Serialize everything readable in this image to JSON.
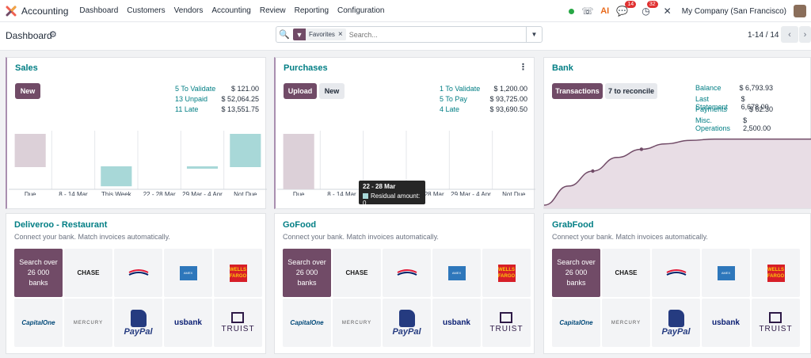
{
  "navbar": {
    "app_title": "Accounting",
    "menu": [
      "Dashboard",
      "Customers",
      "Vendors",
      "Accounting",
      "Review",
      "Reporting",
      "Configuration"
    ],
    "messages_badge": "14",
    "activity_badge": "32",
    "company": "My Company (San Francisco)"
  },
  "control": {
    "title": "Dashboard",
    "facet": "Favorites",
    "search_placeholder": "Search...",
    "pager": "1-14 / 14"
  },
  "sales": {
    "title": "Sales",
    "new_label": "New",
    "stats": [
      {
        "label": "5 To Validate",
        "value": "$ 121.00"
      },
      {
        "label": "13 Unpaid",
        "value": "$ 52,064.25"
      },
      {
        "label": "11 Late",
        "value": "$ 13,551.75"
      }
    ]
  },
  "purchases": {
    "title": "Purchases",
    "upload_label": "Upload",
    "new_label": "New",
    "stats": [
      {
        "label": "1 To Validate",
        "value": "$ 1,200.00"
      },
      {
        "label": "5 To Pay",
        "value": "$ 93,725.00"
      },
      {
        "label": "4 Late",
        "value": "$ 93,690.50"
      }
    ]
  },
  "bank": {
    "title": "Bank",
    "transactions_label": "Transactions",
    "reconcile_label": "7 to reconcile",
    "stats": [
      {
        "label": "Balance",
        "value": "$ 6,793.93"
      },
      {
        "label": "Last Statement",
        "value": "$ 6,678.00"
      },
      {
        "label": "Payments",
        "value": "$ 62.30"
      },
      {
        "label": "Misc. Operations",
        "value": "$ 2,500.00"
      }
    ]
  },
  "chart_data": [
    {
      "type": "bar",
      "chart": "sales",
      "categories": [
        "Due",
        "8 - 14 Mar",
        "This Week",
        "22 - 28 Mar",
        "29 Mar - 4 Apr",
        "Not Due"
      ],
      "values": [
        1,
        0,
        -0.6,
        0,
        -0.07,
        1
      ],
      "colors": {
        "past": "#dcd0d8",
        "future": "#a8d8d8"
      }
    },
    {
      "type": "bar",
      "chart": "purchases",
      "categories": [
        "Due",
        "8 - 14 Mar",
        "This Week",
        "22 - 28 Mar",
        "29 Mar - 4 Apr",
        "Not Due"
      ],
      "values": [
        1,
        0,
        0,
        0,
        0,
        0
      ],
      "colors": {
        "past": "#dcd0d8",
        "future": "#a8d8d8"
      },
      "tooltip": {
        "title": "22 - 28 Mar",
        "label": "Residual amount: 0"
      }
    },
    {
      "type": "area",
      "chart": "bank",
      "values": [
        0,
        0.28,
        0.5,
        0.7,
        0.82,
        0.9,
        0.95,
        0.97,
        0.97,
        0.97,
        0.97,
        0.97
      ],
      "color": "#714b67"
    }
  ],
  "providers": [
    {
      "name": "Deliveroo - Restaurant"
    },
    {
      "name": "GoFood"
    },
    {
      "name": "GrabFood"
    }
  ],
  "providers_common": {
    "subtitle": "Connect your bank. Match invoices automatically.",
    "search_banks": "Search over 26 000 banks",
    "chase": "CHASE",
    "capone": "CapitalOne",
    "mercury": "MERCURY",
    "paypal": "PayPal",
    "usbank": "usbank",
    "truist": "TRUIST",
    "wellsfargo": "WELLS FARGO"
  }
}
